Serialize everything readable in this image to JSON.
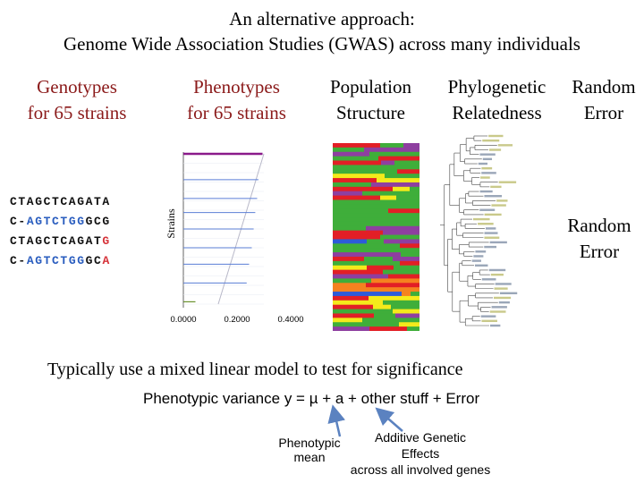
{
  "title": {
    "line1": "An alternative approach:",
    "line2": "Genome Wide Association Studies (GWAS) across many individuals"
  },
  "columns": {
    "genotypes": {
      "line1": "Genotypes",
      "line2": "for 65 strains",
      "color": "#8b1a1a"
    },
    "phenotypes": {
      "line1": "Phenotypes",
      "line2": "for 65 strains",
      "color": "#8b1a1a"
    },
    "population": {
      "line1": "Population",
      "line2": "Structure"
    },
    "phylogenetic": {
      "line1": "Phylogenetic",
      "line2": "Relatedness"
    },
    "random": {
      "line1": "Random",
      "line2": "Error"
    }
  },
  "sequences": [
    [
      {
        "t": "CTAGCTCAGATA",
        "c": "black"
      }
    ],
    [
      {
        "t": "C-",
        "c": "black"
      },
      {
        "t": "AGTCTGG",
        "c": "blue"
      },
      {
        "t": "GCG",
        "c": "black"
      }
    ],
    [
      {
        "t": "CTAGCTCAGAT",
        "c": "black"
      },
      {
        "t": "G",
        "c": "red"
      }
    ],
    [
      {
        "t": "C-",
        "c": "black"
      },
      {
        "t": "AGTCTGG",
        "c": "blue"
      },
      {
        "t": "GC",
        "c": "black"
      },
      {
        "t": "A",
        "c": "red"
      }
    ]
  ],
  "chart_data": {
    "type": "bar",
    "orientation": "horizontal",
    "ylabel": "Strains",
    "xlim": [
      0,
      0.4
    ],
    "x_ticks": [
      "0.0000",
      "0.2000",
      "0.4000"
    ],
    "highlighted_bars": [
      {
        "strain_rank": 1,
        "value": 0.295,
        "color": "#8a1a8a"
      },
      {
        "strain_rank": 12,
        "value": 0.28,
        "color": "#5a7ed6"
      },
      {
        "strain_rank": 20,
        "value": 0.275,
        "color": "#5a7ed6"
      },
      {
        "strain_rank": 26,
        "value": 0.268,
        "color": "#5a7ed6"
      },
      {
        "strain_rank": 33,
        "value": 0.262,
        "color": "#5a7ed6"
      },
      {
        "strain_rank": 41,
        "value": 0.255,
        "color": "#5a7ed6"
      },
      {
        "strain_rank": 48,
        "value": 0.245,
        "color": "#5a7ed6"
      },
      {
        "strain_rank": 56,
        "value": 0.236,
        "color": "#5a7ed6"
      },
      {
        "strain_rank": 64,
        "value": 0.045,
        "color": "#5d8a1a"
      }
    ],
    "curve_range": [
      0.3,
      0.13
    ]
  },
  "random_error_side": {
    "line1": "Random",
    "line2": "Error"
  },
  "model": {
    "text": "Typically use a mixed linear model to test for significance",
    "equation": "Phenotypic variance y = µ  + a + other stuff + Error",
    "annot_mean_1": "Phenotypic",
    "annot_mean_2": "mean",
    "annot_add_1": "Additive Genetic",
    "annot_add_2": "Effects",
    "annot_add_3": "across all involved genes",
    "arrow_color": "#5b82c0"
  }
}
